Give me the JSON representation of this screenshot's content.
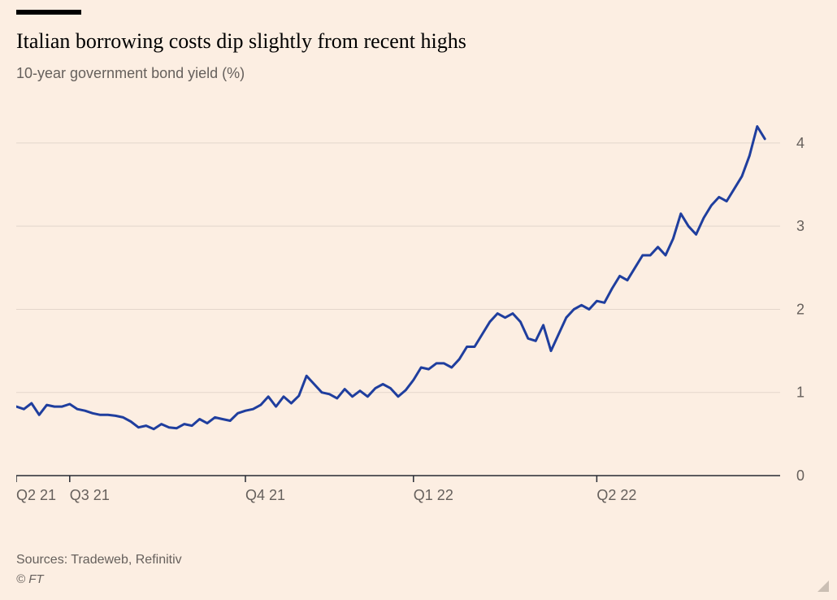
{
  "chart": {
    "type": "line",
    "title": "Italian borrowing costs dip slightly from recent highs",
    "subtitle": "10-year government bond yield (%)",
    "sources": "Sources: Tradeweb, Refinitiv",
    "copyright": "© FT",
    "background_color": "#fceee2",
    "top_bar_color": "#000000",
    "top_bar_width": 80,
    "title_color": "#000000",
    "title_fontsize": 26,
    "subtitle_color": "#66605c",
    "subtitle_fontsize": 18,
    "sources_color": "#66605c",
    "sources_fontsize": 16,
    "copyright_color": "#66605c",
    "copyright_fontsize": 15,
    "line_color": "#1f3e9e",
    "line_width": 3,
    "axis_color": "#262a33",
    "tick_color": "#262a33",
    "gridline_color": "#e3d6cb",
    "tick_label_color": "#66605c",
    "tick_fontsize": 18,
    "corner_triangle_color": "#cbbfb4",
    "y_axis": {
      "lim": [
        0,
        4.4
      ],
      "ticks": [
        0,
        1,
        2,
        3,
        4
      ],
      "tick_labels": [
        "0",
        "1",
        "2",
        "3",
        "4"
      ]
    },
    "x_axis": {
      "lim": [
        0,
        100
      ],
      "ticks": [
        0,
        7,
        30,
        52,
        76
      ],
      "tick_labels": [
        "Q2 21",
        "Q3 21",
        "Q4 21",
        "Q1 22",
        "Q2 22"
      ]
    },
    "plot": {
      "inner_width": 940,
      "inner_height": 450,
      "ylabel_gap": 20
    },
    "series": [
      {
        "x": [
          0,
          1,
          2,
          3,
          4,
          5,
          6,
          7,
          8,
          9,
          10,
          11,
          12,
          13,
          14,
          15,
          16,
          17,
          18,
          19,
          20,
          21,
          22,
          23,
          24,
          25,
          26,
          27,
          28,
          29,
          30,
          31,
          32,
          33,
          34,
          35,
          36,
          37,
          38,
          39,
          40,
          41,
          42,
          43,
          44,
          45,
          46,
          47,
          48,
          49,
          50,
          51,
          52,
          53,
          54,
          55,
          56,
          57,
          58,
          59,
          60,
          61,
          62,
          63,
          64,
          65,
          66,
          67,
          68,
          69,
          70,
          71,
          72,
          73,
          74,
          75,
          76,
          77,
          78,
          79,
          80,
          81,
          82,
          83,
          84,
          85,
          86,
          87,
          88,
          89,
          90,
          91,
          92,
          93,
          94,
          95,
          96,
          97,
          98
        ],
        "y": [
          0.83,
          0.8,
          0.87,
          0.73,
          0.85,
          0.83,
          0.83,
          0.86,
          0.8,
          0.78,
          0.75,
          0.73,
          0.73,
          0.72,
          0.7,
          0.65,
          0.58,
          0.6,
          0.56,
          0.62,
          0.58,
          0.57,
          0.62,
          0.6,
          0.68,
          0.63,
          0.7,
          0.68,
          0.66,
          0.75,
          0.78,
          0.8,
          0.85,
          0.95,
          0.83,
          0.95,
          0.87,
          0.96,
          1.2,
          1.1,
          1.0,
          0.98,
          0.93,
          1.04,
          0.95,
          1.02,
          0.95,
          1.05,
          1.1,
          1.05,
          0.95,
          1.03,
          1.15,
          1.3,
          1.28,
          1.35,
          1.35,
          1.3,
          1.4,
          1.55,
          1.55,
          1.7,
          1.85,
          1.95,
          1.9,
          1.95,
          1.85,
          1.65,
          1.62,
          1.81,
          1.5,
          1.7,
          1.9,
          2.0,
          2.05,
          2.0,
          2.1,
          2.08,
          2.25,
          2.4,
          2.35,
          2.5,
          2.65,
          2.65,
          2.75,
          2.65,
          2.85,
          3.15,
          3.0,
          2.9,
          3.1,
          3.25,
          3.35,
          3.3,
          3.45,
          3.6,
          3.85,
          4.2,
          4.05
        ]
      }
    ]
  }
}
